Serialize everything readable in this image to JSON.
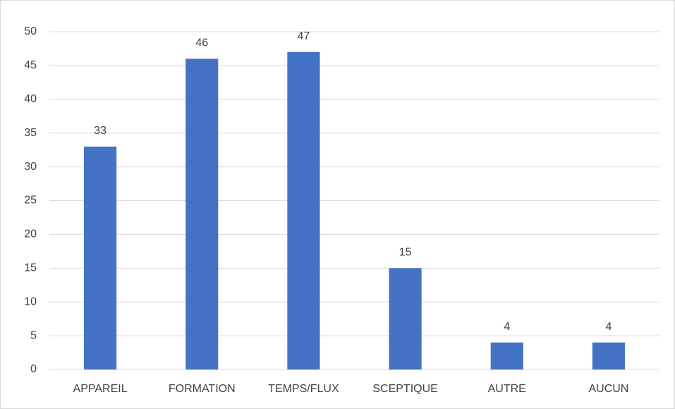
{
  "chart_data": {
    "type": "bar",
    "categories": [
      "APPAREIL",
      "FORMATION",
      "TEMPS/FLUX",
      "SCEPTIQUE",
      "AUTRE",
      "AUCUN"
    ],
    "values": [
      33,
      46,
      47,
      15,
      4,
      4
    ],
    "color": "#4472c4",
    "ylim": [
      0,
      50
    ],
    "yticks": [
      0,
      5,
      10,
      15,
      20,
      25,
      30,
      35,
      40,
      45,
      50
    ],
    "grid": true,
    "data_labels": true
  }
}
